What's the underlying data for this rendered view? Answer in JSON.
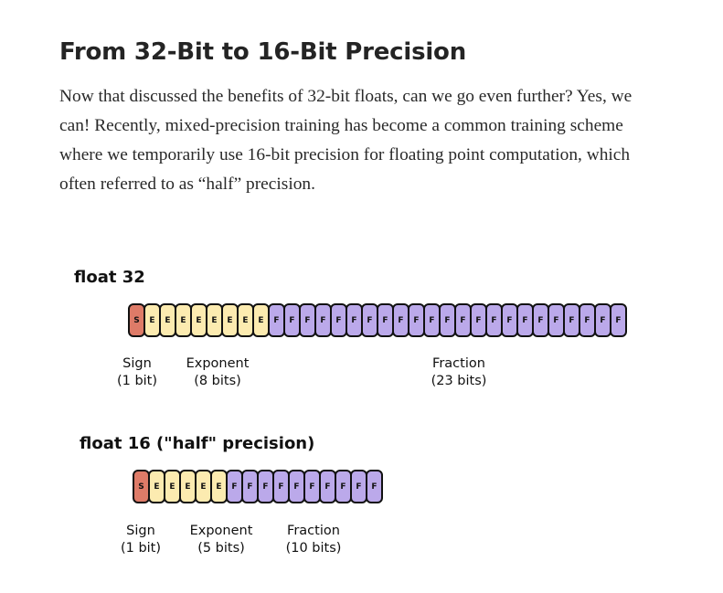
{
  "article": {
    "title": "From 32-Bit to 16-Bit Precision",
    "paragraph": "Now that discussed the benefits of 32-bit floats, can we go even further? Yes, we can! Recently, mixed-precision training has become a common training scheme where we temporarily use 16-bit precision for floating point computation, which often referred to as “half” precision."
  },
  "figure": {
    "float32": {
      "label": "float 32",
      "sign_bits": 1,
      "exponent_bits": 8,
      "fraction_bits": 23,
      "sign_letter": "S",
      "exponent_letter": "E",
      "fraction_letter": "F",
      "sign_caption": {
        "name": "Sign",
        "size": "(1 bit)"
      },
      "exponent_caption": {
        "name": "Exponent",
        "size": "(8 bits)"
      },
      "fraction_caption": {
        "name": "Fraction",
        "size": "(23 bits)"
      }
    },
    "float16": {
      "label": "float 16 (\"half\" precision)",
      "sign_bits": 1,
      "exponent_bits": 5,
      "fraction_bits": 10,
      "sign_letter": "S",
      "exponent_letter": "E",
      "fraction_letter": "F",
      "sign_caption": {
        "name": "Sign",
        "size": "(1 bit)"
      },
      "exponent_caption": {
        "name": "Exponent",
        "size": "(5 bits)"
      },
      "fraction_caption": {
        "name": "Fraction",
        "size": "(10 bits)"
      }
    },
    "colors": {
      "sign": "#de7b68",
      "exponent": "#fcebb0",
      "fraction": "#bba9ea"
    }
  }
}
